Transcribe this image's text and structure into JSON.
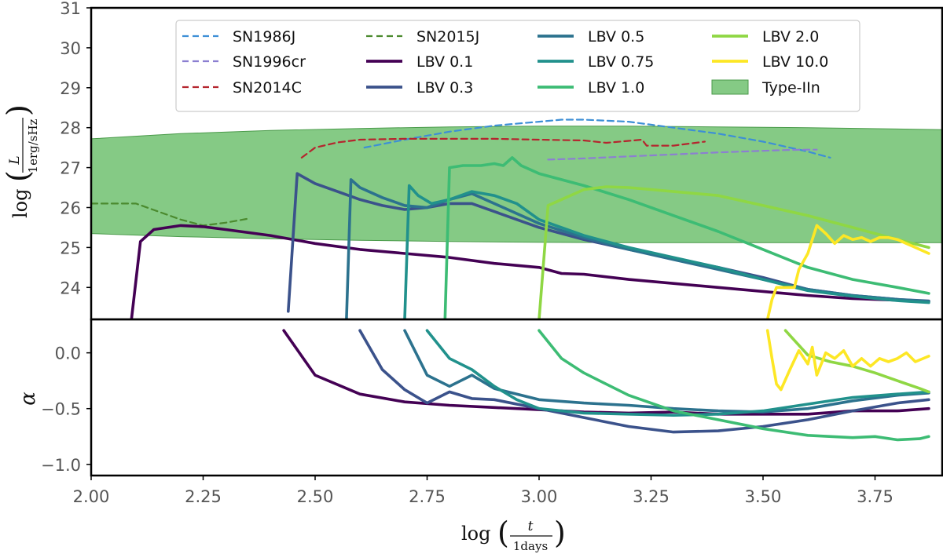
{
  "chart_data": {
    "type": "line",
    "panels": [
      {
        "name": "luminosity",
        "ylabel": "log(L / 1 erg/sHz)",
        "ylim": [
          23.2,
          31
        ],
        "yticks": [
          24,
          25,
          26,
          27,
          28,
          29,
          30,
          31
        ],
        "ytick_labels": [
          "24",
          "25",
          "26",
          "27",
          "28",
          "29",
          "30",
          "31"
        ]
      },
      {
        "name": "alpha",
        "ylabel": "α",
        "ylim": [
          -1.1,
          0.3
        ],
        "yticks": [
          0.0,
          -0.5,
          -1.0
        ],
        "ytick_labels": [
          "0.0",
          "−0.5",
          "−1.0"
        ]
      }
    ],
    "xlabel": "log(t / 1 days)",
    "xlim": [
      2.0,
      3.9
    ],
    "xticks": [
      2.0,
      2.25,
      2.5,
      2.75,
      3.0,
      3.25,
      3.5,
      3.75
    ],
    "xtick_labels": [
      "2.00",
      "2.25",
      "2.50",
      "2.75",
      "3.00",
      "3.25",
      "3.50",
      "3.75"
    ],
    "grid": false,
    "legend": {
      "placement": "top-center",
      "columns": 4,
      "entries": [
        "SN1986J",
        "SN1996cr",
        "SN2014C",
        "SN2015J",
        "LBV 0.1",
        "LBV 0.3",
        "LBV 0.5",
        "LBV 0.75",
        "LBV 1.0",
        "LBV 2.0",
        "LBV 10.0",
        "Type-IIn"
      ]
    },
    "band": {
      "name": "Type-IIn",
      "color": "#5cb85c",
      "x": [
        2.0,
        2.2,
        2.4,
        2.6,
        2.8,
        3.0,
        3.2,
        3.4,
        3.6,
        3.9
      ],
      "upper": [
        27.72,
        27.85,
        27.93,
        27.98,
        28.02,
        28.04,
        28.04,
        28.02,
        28.0,
        27.95
      ],
      "lower": [
        25.35,
        25.27,
        25.22,
        25.18,
        25.15,
        25.13,
        25.12,
        25.12,
        25.12,
        25.12
      ]
    },
    "series": [
      {
        "name": "SN1986J",
        "style": "dashed",
        "color": "#3d8fd6",
        "panel": "luminosity",
        "x": [
          2.61,
          2.7,
          2.8,
          2.9,
          3.0,
          3.05,
          3.1,
          3.2,
          3.3,
          3.4,
          3.5,
          3.6,
          3.65
        ],
        "y": [
          27.5,
          27.7,
          27.9,
          28.05,
          28.15,
          28.2,
          28.2,
          28.15,
          28.0,
          27.85,
          27.65,
          27.4,
          27.25
        ]
      },
      {
        "name": "SN1996cr",
        "style": "dashed",
        "color": "#8c7fd1",
        "panel": "luminosity",
        "x": [
          3.02,
          3.1,
          3.2,
          3.3,
          3.4,
          3.5,
          3.55,
          3.6,
          3.62
        ],
        "y": [
          27.2,
          27.23,
          27.28,
          27.33,
          27.38,
          27.42,
          27.44,
          27.45,
          27.45
        ]
      },
      {
        "name": "SN2014C",
        "style": "dashed",
        "color": "#b5252e",
        "panel": "luminosity",
        "x": [
          2.47,
          2.5,
          2.55,
          2.6,
          2.7,
          2.8,
          2.9,
          3.0,
          3.1,
          3.15,
          3.2,
          3.23,
          3.24,
          3.3,
          3.37
        ],
        "y": [
          27.25,
          27.5,
          27.63,
          27.7,
          27.72,
          27.72,
          27.72,
          27.7,
          27.68,
          27.62,
          27.67,
          27.7,
          27.55,
          27.55,
          27.65
        ]
      },
      {
        "name": "SN2015J",
        "style": "dashed",
        "color": "#4b8a2e",
        "panel": "luminosity",
        "x": [
          2.0,
          2.1,
          2.15,
          2.2,
          2.25,
          2.3,
          2.35
        ],
        "y": [
          26.1,
          26.1,
          25.9,
          25.7,
          25.55,
          25.62,
          25.72
        ]
      },
      {
        "name": "LBV 0.1",
        "style": "solid",
        "color": "#440154",
        "panel": "luminosity",
        "x": [
          2.09,
          2.11,
          2.14,
          2.2,
          2.25,
          2.3,
          2.4,
          2.5,
          2.6,
          2.7,
          2.8,
          2.9,
          3.0,
          3.05,
          3.1,
          3.2,
          3.3,
          3.4,
          3.5,
          3.6,
          3.7,
          3.8,
          3.87
        ],
        "y": [
          23.2,
          25.15,
          25.45,
          25.55,
          25.52,
          25.45,
          25.3,
          25.1,
          24.95,
          24.85,
          24.75,
          24.6,
          24.5,
          24.35,
          24.33,
          24.2,
          24.1,
          24.0,
          23.9,
          23.8,
          23.72,
          23.68,
          23.65
        ]
      },
      {
        "name": "LBV 0.1 α",
        "style": "solid",
        "color": "#440154",
        "panel": "alpha",
        "x": [
          2.43,
          2.5,
          2.6,
          2.7,
          2.8,
          2.9,
          3.0,
          3.1,
          3.2,
          3.3,
          3.4,
          3.5,
          3.6,
          3.7,
          3.8,
          3.87
        ],
        "y": [
          0.2,
          -0.2,
          -0.37,
          -0.44,
          -0.47,
          -0.49,
          -0.51,
          -0.53,
          -0.54,
          -0.53,
          -0.55,
          -0.55,
          -0.55,
          -0.52,
          -0.52,
          -0.5
        ]
      },
      {
        "name": "LBV 0.3",
        "style": "solid",
        "color": "#3b528b",
        "panel": "luminosity",
        "x": [
          2.44,
          2.46,
          2.5,
          2.55,
          2.6,
          2.65,
          2.7,
          2.75,
          2.8,
          2.85,
          2.9,
          3.0,
          3.1,
          3.2,
          3.3,
          3.4,
          3.5,
          3.6,
          3.7,
          3.8,
          3.87
        ],
        "y": [
          23.4,
          26.85,
          26.6,
          26.4,
          26.2,
          26.05,
          25.95,
          26.0,
          26.1,
          26.1,
          25.9,
          25.5,
          25.2,
          24.95,
          24.72,
          24.5,
          24.25,
          23.95,
          23.8,
          23.7,
          23.66
        ]
      },
      {
        "name": "LBV 0.3 α",
        "style": "solid",
        "color": "#3b528b",
        "panel": "alpha",
        "x": [
          2.6,
          2.65,
          2.7,
          2.75,
          2.8,
          2.85,
          2.9,
          3.0,
          3.1,
          3.2,
          3.3,
          3.4,
          3.5,
          3.6,
          3.7,
          3.8,
          3.87
        ],
        "y": [
          0.2,
          -0.15,
          -0.33,
          -0.45,
          -0.35,
          -0.41,
          -0.42,
          -0.5,
          -0.58,
          -0.66,
          -0.71,
          -0.7,
          -0.66,
          -0.6,
          -0.52,
          -0.45,
          -0.42
        ]
      },
      {
        "name": "LBV 0.5",
        "style": "solid",
        "color": "#2c728e",
        "panel": "luminosity",
        "x": [
          2.57,
          2.58,
          2.6,
          2.65,
          2.7,
          2.75,
          2.8,
          2.85,
          2.9,
          3.0,
          3.1,
          3.2,
          3.3,
          3.4,
          3.5,
          3.6,
          3.7,
          3.8,
          3.87
        ],
        "y": [
          23.2,
          26.7,
          26.5,
          26.25,
          26.05,
          26.0,
          26.2,
          26.35,
          26.1,
          25.6,
          25.25,
          24.95,
          24.7,
          24.45,
          24.2,
          23.95,
          23.8,
          23.7,
          23.65
        ]
      },
      {
        "name": "LBV 0.5 α",
        "style": "solid",
        "color": "#2c728e",
        "panel": "alpha",
        "x": [
          2.7,
          2.75,
          2.8,
          2.85,
          2.9,
          3.0,
          3.1,
          3.2,
          3.3,
          3.4,
          3.5,
          3.6,
          3.7,
          3.8,
          3.87
        ],
        "y": [
          0.2,
          -0.2,
          -0.3,
          -0.2,
          -0.32,
          -0.42,
          -0.45,
          -0.47,
          -0.5,
          -0.52,
          -0.53,
          -0.5,
          -0.43,
          -0.38,
          -0.36
        ]
      },
      {
        "name": "LBV 0.75",
        "style": "solid",
        "color": "#21918c",
        "panel": "luminosity",
        "x": [
          2.7,
          2.71,
          2.73,
          2.76,
          2.8,
          2.85,
          2.9,
          2.95,
          3.0,
          3.1,
          3.2,
          3.3,
          3.4,
          3.5,
          3.6,
          3.7,
          3.8,
          3.87
        ],
        "y": [
          23.2,
          26.55,
          26.3,
          26.1,
          26.2,
          26.4,
          26.3,
          26.1,
          25.7,
          25.3,
          25.0,
          24.75,
          24.5,
          24.2,
          23.92,
          23.78,
          23.67,
          23.62
        ]
      },
      {
        "name": "LBV 0.75 α",
        "style": "solid",
        "color": "#21918c",
        "panel": "alpha",
        "x": [
          2.75,
          2.8,
          2.85,
          2.9,
          2.95,
          3.0,
          3.1,
          3.2,
          3.3,
          3.4,
          3.5,
          3.6,
          3.7,
          3.8,
          3.87
        ],
        "y": [
          0.2,
          -0.05,
          -0.15,
          -0.3,
          -0.42,
          -0.5,
          -0.54,
          -0.55,
          -0.56,
          -0.55,
          -0.52,
          -0.46,
          -0.4,
          -0.37,
          -0.35
        ]
      },
      {
        "name": "LBV 1.0",
        "style": "solid",
        "color": "#3dbc74",
        "panel": "luminosity",
        "x": [
          2.79,
          2.8,
          2.83,
          2.87,
          2.9,
          2.92,
          2.94,
          2.96,
          3.0,
          3.1,
          3.2,
          3.3,
          3.4,
          3.5,
          3.6,
          3.7,
          3.8,
          3.87
        ],
        "y": [
          23.2,
          27.0,
          27.05,
          27.05,
          27.1,
          27.05,
          27.25,
          27.05,
          26.85,
          26.55,
          26.2,
          25.8,
          25.4,
          24.95,
          24.5,
          24.2,
          24.0,
          23.85
        ]
      },
      {
        "name": "LBV 1.0 α",
        "style": "solid",
        "color": "#3dbc74",
        "panel": "alpha",
        "x": [
          3.0,
          3.05,
          3.1,
          3.2,
          3.3,
          3.4,
          3.5,
          3.6,
          3.7,
          3.75,
          3.8,
          3.85,
          3.87
        ],
        "y": [
          0.2,
          -0.05,
          -0.18,
          -0.38,
          -0.52,
          -0.6,
          -0.68,
          -0.74,
          -0.76,
          -0.75,
          -0.78,
          -0.77,
          -0.75
        ]
      },
      {
        "name": "LBV 2.0",
        "style": "solid",
        "color": "#8fd744",
        "panel": "luminosity",
        "x": [
          3.0,
          3.02,
          3.05,
          3.1,
          3.15,
          3.2,
          3.3,
          3.4,
          3.5,
          3.6,
          3.7,
          3.8,
          3.87
        ],
        "y": [
          23.2,
          26.05,
          26.2,
          26.45,
          26.52,
          26.5,
          26.4,
          26.3,
          26.05,
          25.8,
          25.5,
          25.2,
          25.0
        ]
      },
      {
        "name": "LBV 2.0 α",
        "style": "solid",
        "color": "#8fd744",
        "panel": "alpha",
        "x": [
          3.55,
          3.6,
          3.65,
          3.7,
          3.75,
          3.8,
          3.85,
          3.87
        ],
        "y": [
          0.2,
          -0.02,
          -0.08,
          -0.12,
          -0.18,
          -0.25,
          -0.32,
          -0.35
        ]
      },
      {
        "name": "LBV 10.0",
        "style": "solid",
        "color": "#fde725",
        "panel": "luminosity",
        "x": [
          3.51,
          3.52,
          3.53,
          3.55,
          3.57,
          3.58,
          3.6,
          3.62,
          3.64,
          3.66,
          3.68,
          3.7,
          3.72,
          3.74,
          3.76,
          3.78,
          3.8,
          3.82,
          3.84,
          3.87
        ],
        "y": [
          23.2,
          23.7,
          24.0,
          24.0,
          24.0,
          24.45,
          24.85,
          25.55,
          25.35,
          25.1,
          25.3,
          25.2,
          25.25,
          25.15,
          25.25,
          25.25,
          25.2,
          25.1,
          25.0,
          24.85
        ]
      },
      {
        "name": "LBV 10.0 α",
        "style": "solid",
        "color": "#fde725",
        "panel": "alpha",
        "x": [
          3.51,
          3.52,
          3.53,
          3.54,
          3.56,
          3.58,
          3.6,
          3.61,
          3.62,
          3.64,
          3.66,
          3.68,
          3.7,
          3.72,
          3.74,
          3.76,
          3.78,
          3.8,
          3.82,
          3.84,
          3.87
        ],
        "y": [
          0.2,
          -0.05,
          -0.28,
          -0.33,
          -0.15,
          0.02,
          -0.1,
          0.05,
          -0.2,
          0.0,
          -0.05,
          0.02,
          -0.12,
          -0.05,
          -0.12,
          -0.05,
          -0.08,
          -0.05,
          0.0,
          -0.08,
          -0.03
        ]
      }
    ]
  }
}
